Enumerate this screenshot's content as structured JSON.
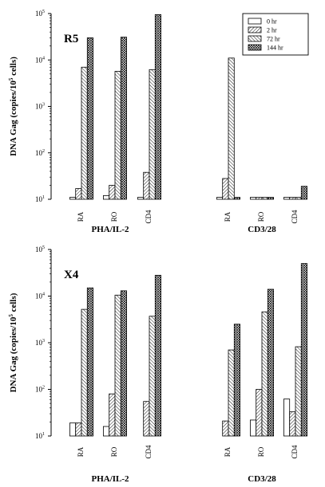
{
  "chart_data": [
    {
      "type": "bar",
      "panel_label": "R5",
      "yscale": "log",
      "ylim": [
        10,
        100000
      ],
      "ylabel": "DNA Gag (copies/10^5 cells)",
      "ytick_values": [
        10,
        100,
        1000,
        10000,
        100000
      ],
      "ytick_exponents": [
        "1",
        "2",
        "3",
        "4",
        "5"
      ],
      "legend_placement": "top-right",
      "series_names": [
        "0 hr",
        "2 hr",
        "72 hr",
        "144 hr"
      ],
      "groups": [
        {
          "label": "PHA/IL-2",
          "categories": [
            {
              "label": "RA",
              "values": [
                11,
                17,
                7000,
                30000
              ]
            },
            {
              "label": "RO",
              "values": [
                12,
                20,
                5700,
                31000
              ]
            },
            {
              "label": "CD4",
              "values": [
                11,
                38,
                6200,
                95000
              ]
            }
          ]
        },
        {
          "label": "CD3/28",
          "categories": [
            {
              "label": "RA",
              "values": [
                11,
                28,
                11000,
                11
              ]
            },
            {
              "label": "RO",
              "values": [
                11,
                11,
                11,
                11
              ]
            },
            {
              "label": "CD4",
              "values": [
                11,
                11,
                11,
                19
              ]
            }
          ]
        }
      ]
    },
    {
      "type": "bar",
      "panel_label": "X4",
      "yscale": "log",
      "ylim": [
        10,
        100000
      ],
      "ylabel": "DNA Gag (copies/10^5 cells)",
      "ytick_values": [
        10,
        100,
        1000,
        10000,
        100000
      ],
      "ytick_exponents": [
        "1",
        "2",
        "3",
        "4",
        "5"
      ],
      "series_names": [
        "0 hr",
        "2 hr",
        "72 hr",
        "144 hr"
      ],
      "groups": [
        {
          "label": "PHA/IL-2",
          "categories": [
            {
              "label": "RA",
              "values": [
                19,
                19,
                5200,
                15000
              ]
            },
            {
              "label": "RO",
              "values": [
                16,
                80,
                10500,
                13000
              ]
            },
            {
              "label": "CD4",
              "values": [
                10,
                55,
                3700,
                28000
              ]
            }
          ]
        },
        {
          "label": "CD3/28",
          "categories": [
            {
              "label": "RA",
              "values": [
                10,
                21,
                700,
                2500
              ]
            },
            {
              "label": "RO",
              "values": [
                22,
                100,
                4600,
                14000
              ]
            },
            {
              "label": "CD4",
              "values": [
                62,
                33,
                820,
                50000
              ]
            }
          ]
        }
      ]
    }
  ]
}
